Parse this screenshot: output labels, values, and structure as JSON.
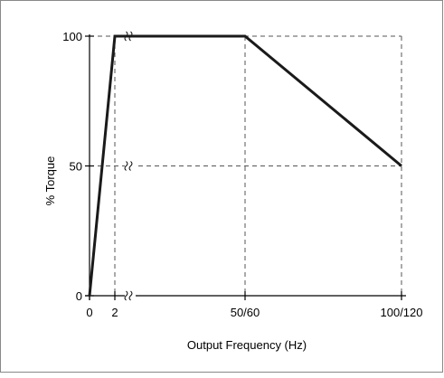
{
  "chart_data": {
    "type": "line",
    "title": "",
    "xlabel": "Output Frequency (Hz)",
    "ylabel": "% Torque",
    "x_ticks": [
      "0",
      "2",
      "50/60",
      "100/120"
    ],
    "y_ticks": [
      "0",
      "50",
      "100"
    ],
    "series": [
      {
        "x": [
          "0",
          "2",
          "50/60",
          "100/120"
        ],
        "values": [
          0,
          100,
          100,
          50
        ]
      }
    ],
    "ylim": [
      0,
      100
    ],
    "grid": "dashed reference lines at key points",
    "axis_break": "after 2 Hz"
  },
  "colors": {
    "line": "#1a1a1a",
    "axis": "#000000",
    "grid": "#555555",
    "frame": "#888888"
  }
}
